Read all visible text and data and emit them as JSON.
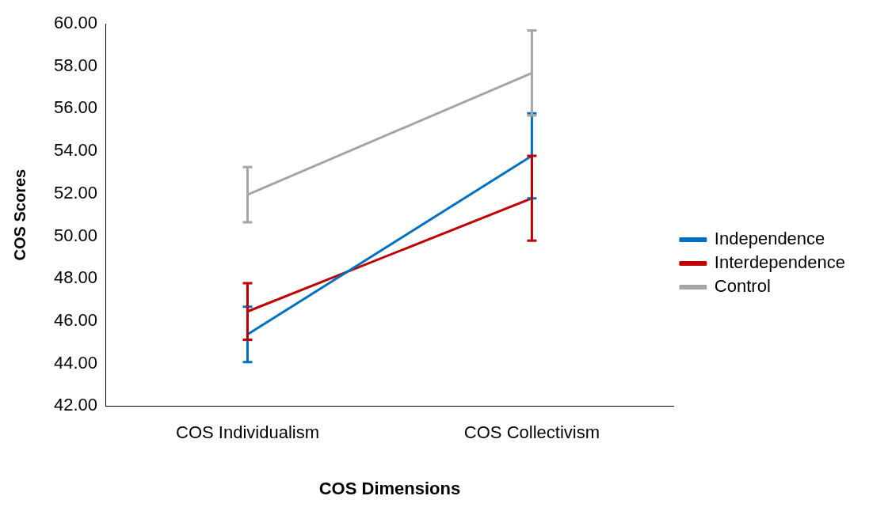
{
  "chart_data": {
    "type": "line",
    "xlabel": "COS Dimensions",
    "ylabel": "COS Scores",
    "categories": [
      "COS Individualism",
      "COS Collectivism"
    ],
    "series": [
      {
        "name": "Independence",
        "color": "#0070c0",
        "values": [
          45.37,
          53.78
        ],
        "errors": [
          1.3,
          2.0
        ]
      },
      {
        "name": "Interdependence",
        "color": "#c00000",
        "values": [
          46.45,
          51.78
        ],
        "errors": [
          1.33,
          2.0
        ]
      },
      {
        "name": "Control",
        "color": "#a5a5a5",
        "values": [
          51.95,
          57.68
        ],
        "errors": [
          1.3,
          2.0
        ]
      }
    ],
    "ylim": [
      42,
      60
    ],
    "yticks": [
      {
        "value": 42,
        "label": "42.00"
      },
      {
        "value": 44,
        "label": "44.00"
      },
      {
        "value": 46,
        "label": "46.00"
      },
      {
        "value": 48,
        "label": "48.00"
      },
      {
        "value": 50,
        "label": "50.00"
      },
      {
        "value": 52,
        "label": "52.00"
      },
      {
        "value": 54,
        "label": "54.00"
      },
      {
        "value": 56,
        "label": "56.00"
      },
      {
        "value": 58,
        "label": "58.00"
      },
      {
        "value": 60,
        "label": "60.00"
      }
    ],
    "grid": false,
    "legend": "right",
    "marker": "none",
    "line_style": "solid"
  }
}
